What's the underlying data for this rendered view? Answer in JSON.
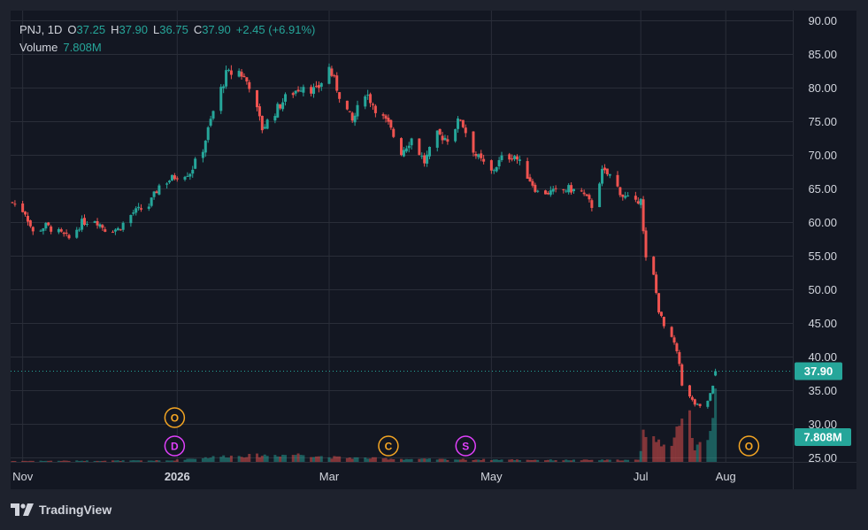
{
  "legend": {
    "symbol": "PNJ",
    "interval": "1D",
    "open_label": "O",
    "open": "37.25",
    "high_label": "H",
    "high": "37.90",
    "low_label": "L",
    "low": "36.75",
    "close_label": "C",
    "close": "37.90",
    "change": "+2.45 (+6.91%)",
    "volume_label": "Volume",
    "volume": "7.808M"
  },
  "brand": {
    "name": "TradingView",
    "icon": "tradingview-logo-icon"
  },
  "colors": {
    "background": "#1e222d",
    "pane": "#131722",
    "grid": "#2a2e39",
    "up": "#26a69a",
    "down": "#ef5350",
    "text": "#d1d4dc",
    "marker_orange": "#f5a623",
    "marker_pink": "#e040fb"
  },
  "chart_data": {
    "type": "candlestick",
    "symbol": "PNJ",
    "interval": "1D",
    "y_axis": {
      "ticks": [
        "90.00",
        "85.00",
        "80.00",
        "75.00",
        "70.00",
        "65.00",
        "60.00",
        "55.00",
        "50.00",
        "45.00",
        "40.00",
        "35.00",
        "30.00",
        "25.00"
      ],
      "range": [
        25,
        90
      ]
    },
    "x_axis": {
      "labels": [
        {
          "label": "Nov",
          "date": "2025-11-03"
        },
        {
          "label": "2026",
          "date": "2026-01-02"
        },
        {
          "label": "Mar",
          "date": "2026-03-02"
        },
        {
          "label": "May",
          "date": "2026-05-04"
        },
        {
          "label": "Jul",
          "date": "2026-07-01"
        },
        {
          "label": "Aug",
          "date": "2026-08-03"
        }
      ]
    },
    "last_price_label": "37.90",
    "last_price": 37.9,
    "last_volume_label": "7.808M",
    "price_path": [
      [
        "2025-10-30",
        63
      ],
      [
        "2025-11-04",
        61.5
      ],
      [
        "2025-11-07",
        58.5
      ],
      [
        "2025-11-12",
        59.5
      ],
      [
        "2025-11-17",
        58.5
      ],
      [
        "2025-11-21",
        57.6
      ],
      [
        "2025-11-26",
        60
      ],
      [
        "2025-12-01",
        60.5
      ],
      [
        "2025-12-05",
        59
      ],
      [
        "2025-12-10",
        59
      ],
      [
        "2025-12-16",
        61.5
      ],
      [
        "2025-12-22",
        62.5
      ],
      [
        "2025-12-26",
        65.5
      ],
      [
        "2026-01-02",
        67
      ],
      [
        "2026-01-07",
        67.5
      ],
      [
        "2026-01-12",
        71
      ],
      [
        "2026-01-16",
        76.5
      ],
      [
        "2026-01-21",
        82
      ],
      [
        "2026-01-26",
        82.5
      ],
      [
        "2026-01-30",
        80.5
      ],
      [
        "2026-02-04",
        74
      ],
      [
        "2026-02-09",
        76.5
      ],
      [
        "2026-02-13",
        78.5
      ],
      [
        "2026-02-20",
        80.5
      ],
      [
        "2026-02-25",
        79.5
      ],
      [
        "2026-03-02",
        83
      ],
      [
        "2026-03-06",
        79
      ],
      [
        "2026-03-11",
        75
      ],
      [
        "2026-03-16",
        79.5
      ],
      [
        "2026-03-20",
        77
      ],
      [
        "2026-03-25",
        74.5
      ],
      [
        "2026-03-30",
        70.5
      ],
      [
        "2026-04-03",
        72.5
      ],
      [
        "2026-04-08",
        69
      ],
      [
        "2026-04-13",
        73
      ],
      [
        "2026-04-17",
        72.5
      ],
      [
        "2026-04-22",
        75.5
      ],
      [
        "2026-04-24",
        73.5
      ],
      [
        "2026-04-28",
        70
      ],
      [
        "2026-05-04",
        67.5
      ],
      [
        "2026-05-08",
        69.5
      ],
      [
        "2026-05-13",
        70
      ],
      [
        "2026-05-18",
        67
      ],
      [
        "2026-05-22",
        64.5
      ],
      [
        "2026-05-28",
        64.5
      ],
      [
        "2026-06-03",
        65
      ],
      [
        "2026-06-08",
        64.5
      ],
      [
        "2026-06-12",
        62.5
      ],
      [
        "2026-06-16",
        67.5
      ],
      [
        "2026-06-19",
        67
      ],
      [
        "2026-06-24",
        64
      ],
      [
        "2026-06-29",
        62.8
      ],
      [
        "2026-07-01",
        64
      ],
      [
        "2026-07-02",
        58.5
      ],
      [
        "2026-07-03",
        54.5
      ],
      [
        "2026-07-06",
        52
      ],
      [
        "2026-07-08",
        47
      ],
      [
        "2026-07-10",
        44.5
      ],
      [
        "2026-07-14",
        42
      ],
      [
        "2026-07-16",
        39
      ],
      [
        "2026-07-17",
        36
      ],
      [
        "2026-07-20",
        34
      ],
      [
        "2026-07-22",
        33
      ],
      [
        "2026-07-24",
        32.5
      ],
      [
        "2026-07-27",
        33.5
      ],
      [
        "2026-07-29",
        35.5
      ],
      [
        "2026-07-30",
        37.9
      ]
    ],
    "volume_path": [
      [
        "2025-10-30",
        0.1
      ],
      [
        "2025-12-31",
        0.15
      ],
      [
        "2026-01-05",
        0.3
      ],
      [
        "2026-01-20",
        0.6
      ],
      [
        "2026-02-20",
        0.8
      ],
      [
        "2026-03-02",
        0.5
      ],
      [
        "2026-04-01",
        0.3
      ],
      [
        "2026-05-01",
        0.25
      ],
      [
        "2026-06-01",
        0.2
      ],
      [
        "2026-06-30",
        0.2
      ],
      [
        "2026-07-01",
        1
      ],
      [
        "2026-07-02",
        4
      ],
      [
        "2026-07-03",
        3.5
      ],
      [
        "2026-07-08",
        2
      ],
      [
        "2026-07-14",
        2.5
      ],
      [
        "2026-07-20",
        5
      ],
      [
        "2026-07-22",
        1.5
      ],
      [
        "2026-07-24",
        2.5
      ],
      [
        "2026-07-27",
        2.2
      ],
      [
        "2026-07-30",
        7.808
      ]
    ],
    "volume_max": 8,
    "events": [
      {
        "label": "O",
        "date": "2026-01-01",
        "row": "upper",
        "color": "orange"
      },
      {
        "label": "D",
        "date": "2026-01-01",
        "row": "lower",
        "color": "pink"
      },
      {
        "label": "C",
        "date": "2026-03-25",
        "row": "lower",
        "color": "orange"
      },
      {
        "label": "S",
        "date": "2026-04-24",
        "row": "lower",
        "color": "pink"
      },
      {
        "label": "O",
        "date": "2026-08-12",
        "row": "lower",
        "color": "orange"
      }
    ]
  }
}
